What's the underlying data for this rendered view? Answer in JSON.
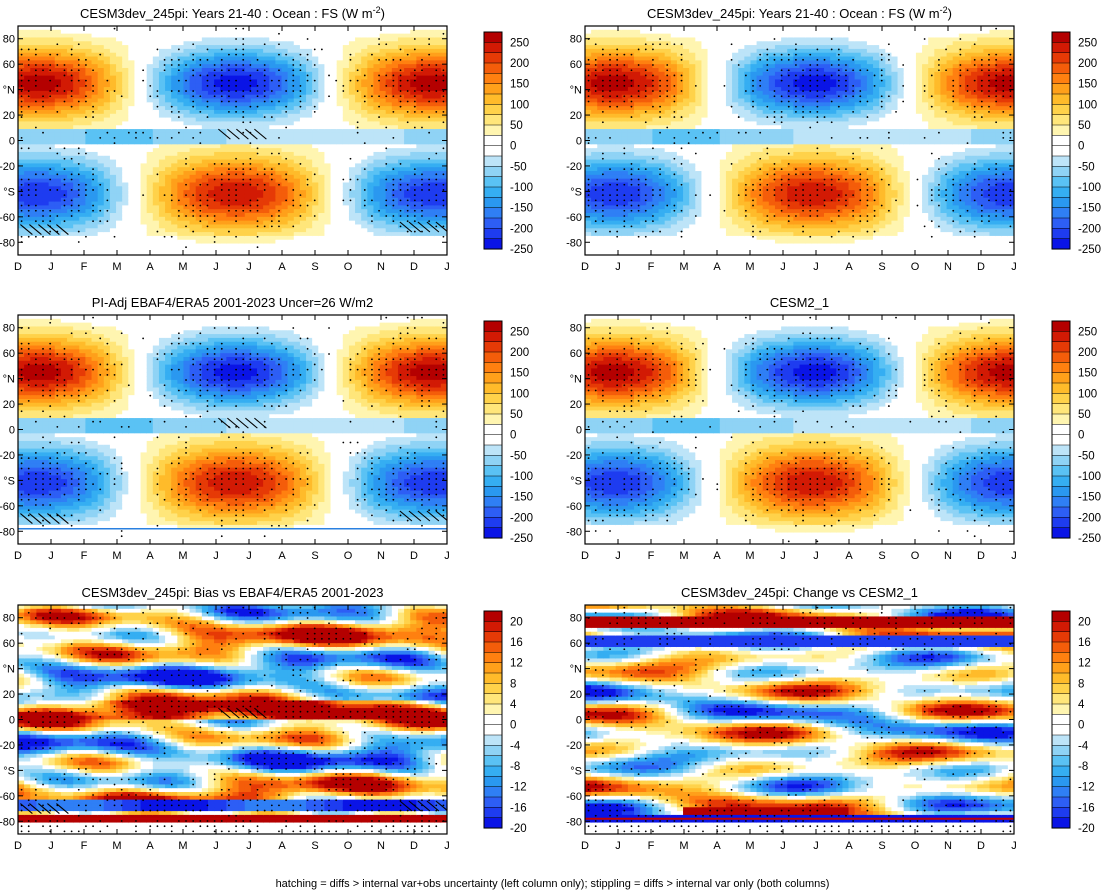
{
  "footer": "hatching = diffs > internal var+obs uncertainty (left column only); stippling = diffs > internal var only (both columns)",
  "chart_data": [
    {
      "type": "heatmap",
      "panel": "top-left",
      "title": "CESM3dev_245pi: Years 21-40 : Ocean : FS (W m",
      "title_superscript": "-2",
      "title_suffix": ")",
      "x_ticks": [
        "D",
        "J",
        "F",
        "M",
        "A",
        "M",
        "J",
        "J",
        "A",
        "S",
        "O",
        "N",
        "D",
        "J"
      ],
      "y_ticks": [
        "80",
        "60",
        "°N",
        "20",
        "0",
        "-20",
        "°S",
        "-60",
        "-80"
      ],
      "ylim": [
        -90,
        90
      ],
      "colorbar_labels": [
        "250",
        "200",
        "150",
        "100",
        "50",
        "0",
        "-50",
        "-100",
        "-150",
        "-200",
        "-250"
      ],
      "value_range": [
        -275,
        275
      ],
      "hatching": true,
      "stippling": true
    },
    {
      "type": "heatmap",
      "panel": "top-right",
      "title": "CESM3dev_245pi: Years 21-40 : Ocean : FS (W m",
      "title_superscript": "-2",
      "title_suffix": ")",
      "x_ticks": [
        "D",
        "J",
        "F",
        "M",
        "A",
        "M",
        "J",
        "J",
        "A",
        "S",
        "O",
        "N",
        "D",
        "J"
      ],
      "y_ticks": [
        "80",
        "60",
        "°N",
        "20",
        "0",
        "-20",
        "°S",
        "-60",
        "-80"
      ],
      "ylim": [
        -90,
        90
      ],
      "colorbar_labels": [
        "250",
        "200",
        "150",
        "100",
        "50",
        "0",
        "-50",
        "-100",
        "-150",
        "-200",
        "-250"
      ],
      "value_range": [
        -275,
        275
      ],
      "hatching": false,
      "stippling": true
    },
    {
      "type": "heatmap",
      "panel": "middle-left",
      "title": "PI-Adj EBAF4/ERA5 2001-2023 Uncer=26 W/m2",
      "x_ticks": [
        "D",
        "J",
        "F",
        "M",
        "A",
        "M",
        "J",
        "J",
        "A",
        "S",
        "O",
        "N",
        "D",
        "J"
      ],
      "y_ticks": [
        "80",
        "60",
        "°N",
        "20",
        "0",
        "-20",
        "°S",
        "-60",
        "-80"
      ],
      "ylim": [
        -90,
        90
      ],
      "colorbar_labels": [
        "250",
        "200",
        "150",
        "100",
        "50",
        "0",
        "-50",
        "-100",
        "-150",
        "-200",
        "-250"
      ],
      "value_range": [
        -275,
        275
      ],
      "hatching": true,
      "stippling": true
    },
    {
      "type": "heatmap",
      "panel": "middle-right",
      "title": "CESM2_1",
      "x_ticks": [
        "D",
        "J",
        "F",
        "M",
        "A",
        "M",
        "J",
        "J",
        "A",
        "S",
        "O",
        "N",
        "D",
        "J"
      ],
      "y_ticks": [
        "80",
        "60",
        "°N",
        "20",
        "0",
        "-20",
        "°S",
        "-60",
        "-80"
      ],
      "ylim": [
        -90,
        90
      ],
      "colorbar_labels": [
        "250",
        "200",
        "150",
        "100",
        "50",
        "0",
        "-50",
        "-100",
        "-150",
        "-200",
        "-250"
      ],
      "value_range": [
        -275,
        275
      ],
      "hatching": false,
      "stippling": true
    },
    {
      "type": "heatmap",
      "panel": "bottom-left",
      "title": "CESM3dev_245pi: Bias vs EBAF4/ERA5 2001-2023",
      "x_ticks": [
        "D",
        "J",
        "F",
        "M",
        "A",
        "M",
        "J",
        "J",
        "A",
        "S",
        "O",
        "N",
        "D",
        "J"
      ],
      "y_ticks": [
        "80",
        "60",
        "°N",
        "20",
        "0",
        "-20",
        "°S",
        "-60",
        "-80"
      ],
      "ylim": [
        -90,
        90
      ],
      "colorbar_labels": [
        "20",
        "16",
        "12",
        "8",
        "4",
        "0",
        "-4",
        "-8",
        "-12",
        "-16",
        "-20"
      ],
      "value_range": [
        -22,
        22
      ],
      "hatching": true,
      "stippling": true
    },
    {
      "type": "heatmap",
      "panel": "bottom-right",
      "title": "CESM3dev_245pi: Change vs CESM2_1",
      "x_ticks": [
        "D",
        "J",
        "F",
        "M",
        "A",
        "M",
        "J",
        "J",
        "A",
        "S",
        "O",
        "N",
        "D",
        "J"
      ],
      "y_ticks": [
        "80",
        "60",
        "°N",
        "20",
        "0",
        "-20",
        "°S",
        "-60",
        "-80"
      ],
      "ylim": [
        -90,
        90
      ],
      "colorbar_labels": [
        "20",
        "16",
        "12",
        "8",
        "4",
        "0",
        "-4",
        "-8",
        "-12",
        "-16",
        "-20"
      ],
      "value_range": [
        -22,
        22
      ],
      "hatching": false,
      "stippling": true
    }
  ]
}
